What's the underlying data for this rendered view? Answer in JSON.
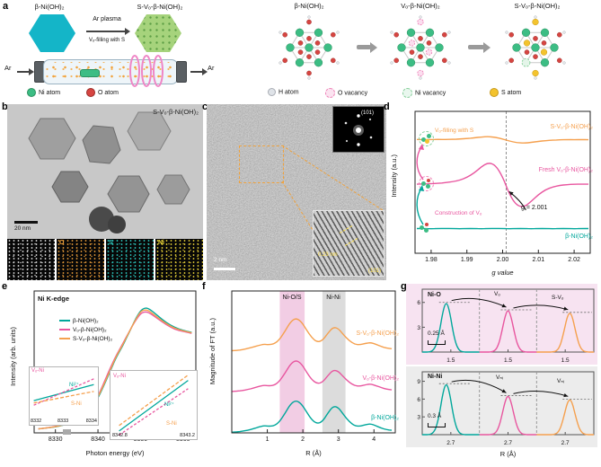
{
  "colors": {
    "teal": "#00a79b",
    "pink": "#e8569f",
    "orange": "#f5a04e",
    "green": "#3cbd84",
    "red": "#d64541",
    "yellow": "#f3c32e"
  },
  "panel_a": {
    "label": "a",
    "precursor": "β-Ni(OH)₂",
    "product": "S-Vₒ-β-Ni(OH)₂",
    "arrow_top": "Ar plasma",
    "arrow_bottom": "Vₒ-filling with S",
    "gas_in": "Ar",
    "gas_out": "Ar",
    "legend_left": [
      {
        "label": "Ni atom"
      },
      {
        "label": "O atom"
      }
    ],
    "structures": [
      {
        "title": "β-Ni(OH)₂"
      },
      {
        "title": "Vₒ-β-Ni(OH)₂"
      },
      {
        "title": "S-Vₒ-β-Ni(OH)₂"
      }
    ],
    "legend_right": [
      {
        "label": "H atom"
      },
      {
        "label": "O vacancy"
      },
      {
        "label": "Ni vacancy"
      },
      {
        "label": "S atom"
      }
    ]
  },
  "panel_b": {
    "label": "b",
    "sample": "S-Vₒ-β-Ni(OH)₂",
    "scalebar": "20 nm",
    "eds": [
      "O",
      "S",
      "Ni"
    ]
  },
  "panel_c": {
    "label": "c",
    "scalebar": "2 nm",
    "fft_spot": "(101)",
    "dspacing": "0.23 nm",
    "plane": "(101)"
  },
  "panel_d": {
    "label": "d",
    "annotation": "g = 2.001",
    "process_top": "Vₒ-filling with S",
    "process_bottom": "Construction of Vₒ"
  },
  "panel_e": {
    "label": "e",
    "title": "Ni K-edge",
    "legend": [
      {
        "name": "β-Ni(OH)₂",
        "color": "#00a79b"
      },
      {
        "name": "Vₒ-β-Ni(OH)₂",
        "color": "#e8569f"
      },
      {
        "name": "S-Vₒ-β-Ni(OH)₂",
        "color": "#f5a04e"
      }
    ],
    "inset1": {
      "ticks": [
        "8332",
        "8333",
        "8334"
      ],
      "labels": [
        {
          "t": "Vₒ-Ni",
          "color": "#e8569f"
        },
        {
          "t": "Ni²⁺",
          "color": "#00a79b"
        },
        {
          "t": "S-Ni",
          "color": "#f5a04e"
        }
      ],
      "lines": [
        {
          "c": "#00a79b",
          "pts": [
            [
              0.06,
              0.58
            ],
            [
              0.94,
              0.3
            ]
          ]
        },
        {
          "c": "#e8569f",
          "dash": "3,2",
          "pts": [
            [
              0.06,
              0.66
            ],
            [
              0.94,
              0.2
            ]
          ]
        },
        {
          "c": "#f5a04e",
          "dash": "4,2",
          "pts": [
            [
              0.06,
              0.62
            ],
            [
              0.94,
              0.42
            ]
          ]
        }
      ]
    },
    "inset2": {
      "ticks": [
        "8342.8",
        "8343.2"
      ],
      "labels": [
        {
          "t": "Vₒ-Ni",
          "color": "#e8569f"
        },
        {
          "t": "Ni²⁺",
          "color": "#00a79b"
        },
        {
          "t": "S-Ni",
          "color": "#f5a04e"
        }
      ],
      "lines": [
        {
          "c": "#00a79b",
          "pts": [
            [
              0.1,
              0.88
            ],
            [
              0.9,
              0.14
            ]
          ]
        },
        {
          "c": "#e8569f",
          "dash": "3,2",
          "pts": [
            [
              0.1,
              0.94
            ],
            [
              0.9,
              0.26
            ]
          ]
        },
        {
          "c": "#f5a04e",
          "dash": "4,2",
          "pts": [
            [
              0.1,
              0.8
            ],
            [
              0.9,
              0.06
            ]
          ]
        }
      ]
    }
  },
  "panel_f": {
    "label": "f",
    "band1": "Ni-O/S",
    "band2": "Ni-Ni"
  },
  "panel_g": {
    "label": "g",
    "xlabel": "R (Å)",
    "top": {
      "region": "Ni-O",
      "delta": "0.25 Å",
      "a1": "Vₒ",
      "a2": "S-Vₒ"
    },
    "bottom": {
      "region": "Ni-Ni",
      "delta": "0.3 Å",
      "a1": "Vₙᵢ",
      "a2": "Vₙᵢ"
    }
  },
  "chart_data": [
    {
      "id": "epr",
      "type": "line",
      "xlabel": "g value",
      "ylabel": "Intensity (a.u.)",
      "xlim": [
        1.9755,
        2.0245
      ],
      "ylim": [
        -5.6,
        5.9
      ],
      "pad": [
        8,
        8,
        30,
        30
      ],
      "xticks": [
        {
          "v": 1.98,
          "l": "1.98"
        },
        {
          "v": 1.99,
          "l": "1.99"
        },
        {
          "v": 2.0,
          "l": "2.00"
        },
        {
          "v": 2.01,
          "l": "2.01"
        },
        {
          "v": 2.02,
          "l": "2.02"
        }
      ],
      "vlines": [
        2.001
      ],
      "x": [
        1.976,
        1.978,
        1.98,
        1.982,
        1.984,
        1.986,
        1.988,
        1.99,
        1.992,
        1.994,
        1.996,
        1.998,
        2.0,
        2.002,
        2.004,
        2.006,
        2.008,
        2.01,
        2.012,
        2.014,
        2.016,
        2.018,
        2.02,
        2.022,
        2.024
      ],
      "series": [
        {
          "name": "S-Vₒ-β-Ni(OH)₂",
          "color": "#f5a04e",
          "offset": 3.6,
          "y": [
            0.02,
            0.01,
            0.02,
            0.03,
            0.02,
            0.04,
            0.06,
            0.1,
            0.15,
            0.22,
            0.26,
            0.2,
            0.06,
            -0.12,
            -0.24,
            -0.28,
            -0.22,
            -0.14,
            -0.07,
            -0.03,
            -0.01,
            0.01,
            0,
            0.01,
            0
          ]
        },
        {
          "name": "Fresh Vₒ-β-Ni(OH)₂",
          "color": "#e8569f",
          "offset": 0,
          "y": [
            0,
            0.02,
            0.04,
            0.07,
            0.12,
            0.2,
            0.32,
            0.55,
            0.9,
            1.4,
            1.75,
            1.55,
            0.6,
            -0.9,
            -1.75,
            -1.85,
            -1.4,
            -0.85,
            -0.45,
            -0.22,
            -0.1,
            -0.04,
            0,
            0,
            0
          ]
        },
        {
          "name": "β-Ni(OH)₂",
          "color": "#00a79b",
          "offset": -3.6,
          "y": [
            0,
            0.01,
            -0.01,
            0.01,
            0,
            0.01,
            -0.01,
            0,
            0.01,
            -0.01,
            0.01,
            0,
            0.01,
            -0.01,
            0,
            0.01,
            -0.01,
            0.01,
            0,
            -0.01,
            0.01,
            0,
            -0.01,
            0.01,
            0
          ]
        }
      ],
      "arrows": [
        {
          "x0": 2.0065,
          "y0": -2.1,
          "x1": 2.0018,
          "y1": -0.6,
          "bend": 4
        }
      ],
      "annotation": "g = 2.001"
    },
    {
      "id": "xanes",
      "type": "line",
      "xlabel": "Photon energy (eV)",
      "ylabel": "Intensity (arb. units)",
      "xlim": [
        8325,
        8363
      ],
      "ylim": [
        -0.02,
        1.42
      ],
      "pad": [
        8,
        8,
        30,
        30
      ],
      "xticks": [
        {
          "v": 8330,
          "l": "8330"
        },
        {
          "v": 8340,
          "l": "8340"
        },
        {
          "v": 8350,
          "l": "8350"
        },
        {
          "v": 8360,
          "l": "8360"
        }
      ],
      "x": [
        8326,
        8328,
        8330,
        8332,
        8333,
        8334,
        8336,
        8338,
        8340,
        8342,
        8343,
        8344,
        8345,
        8346,
        8347,
        8348,
        8349,
        8350,
        8351,
        8352,
        8354,
        8356,
        8358,
        8360,
        8362
      ],
      "series": [
        {
          "name": "β-Ni(OH)₂",
          "color": "#00a79b",
          "offset": 0,
          "y": [
            0.02,
            0.03,
            0.04,
            0.06,
            0.07,
            0.09,
            0.13,
            0.2,
            0.33,
            0.52,
            0.62,
            0.72,
            0.8,
            0.88,
            0.97,
            1.06,
            1.15,
            1.22,
            1.25,
            1.24,
            1.17,
            1.1,
            1.05,
            1.02,
            1.0
          ]
        },
        {
          "name": "Vₒ-β-Ni(OH)₂",
          "color": "#e8569f",
          "offset": 0,
          "y": [
            0.02,
            0.03,
            0.045,
            0.065,
            0.075,
            0.095,
            0.135,
            0.21,
            0.35,
            0.55,
            0.65,
            0.74,
            0.82,
            0.9,
            0.98,
            1.06,
            1.13,
            1.19,
            1.21,
            1.2,
            1.14,
            1.08,
            1.03,
            1.01,
            0.99
          ]
        },
        {
          "name": "S-Vₒ-β-Ni(OH)₂",
          "color": "#f5a04e",
          "offset": 0,
          "y": [
            0.02,
            0.03,
            0.042,
            0.062,
            0.072,
            0.092,
            0.13,
            0.205,
            0.34,
            0.53,
            0.63,
            0.73,
            0.81,
            0.89,
            0.975,
            1.06,
            1.14,
            1.21,
            1.23,
            1.22,
            1.15,
            1.09,
            1.04,
            1.015,
            0.995
          ]
        }
      ]
    },
    {
      "id": "exafs",
      "type": "line",
      "xlabel": "R (Å)",
      "ylabel": "Magnitude of FT (a.u.)",
      "xlim": [
        0,
        4.6
      ],
      "ylim": [
        0,
        4.35
      ],
      "pad": [
        8,
        8,
        30,
        28
      ],
      "xticks": [
        {
          "v": 1,
          "l": "1"
        },
        {
          "v": 2,
          "l": "2"
        },
        {
          "v": 3,
          "l": "3"
        },
        {
          "v": 4,
          "l": "4"
        }
      ],
      "bands": [
        {
          "x0": 1.35,
          "x1": 2.05,
          "c": "#f2cde4"
        },
        {
          "x0": 2.55,
          "x1": 3.2,
          "c": "#dcdcdc"
        }
      ],
      "x": [
        0,
        0.15,
        0.3,
        0.45,
        0.6,
        0.75,
        0.9,
        1.05,
        1.2,
        1.35,
        1.5,
        1.65,
        1.8,
        1.95,
        2.1,
        2.25,
        2.4,
        2.55,
        2.7,
        2.85,
        3.0,
        3.15,
        3.3,
        3.45,
        3.6,
        3.75,
        3.9,
        4.05,
        4.2,
        4.35,
        4.5
      ],
      "series": [
        {
          "name": "S-Vₒ-β-Ni(OH)₂",
          "color": "#f5a04e",
          "offset": 2.5,
          "y": [
            0.02,
            0.03,
            0.05,
            0.09,
            0.13,
            0.18,
            0.22,
            0.2,
            0.23,
            0.37,
            0.62,
            0.9,
            1.02,
            0.92,
            0.66,
            0.42,
            0.28,
            0.33,
            0.55,
            0.74,
            0.7,
            0.5,
            0.33,
            0.22,
            0.2,
            0.24,
            0.27,
            0.22,
            0.15,
            0.1,
            0.08
          ]
        },
        {
          "name": "Vₒ-β-Ni(OH)₂",
          "color": "#e8569f",
          "offset": 1.25,
          "y": [
            0.02,
            0.03,
            0.05,
            0.08,
            0.12,
            0.17,
            0.21,
            0.19,
            0.21,
            0.34,
            0.58,
            0.86,
            0.98,
            0.88,
            0.62,
            0.38,
            0.26,
            0.3,
            0.5,
            0.68,
            0.64,
            0.46,
            0.3,
            0.2,
            0.18,
            0.22,
            0.25,
            0.2,
            0.14,
            0.09,
            0.07
          ]
        },
        {
          "name": "β-Ni(OH)₂",
          "color": "#00a79b",
          "offset": 0,
          "y": [
            0.02,
            0.03,
            0.05,
            0.08,
            0.12,
            0.18,
            0.22,
            0.2,
            0.22,
            0.35,
            0.6,
            0.88,
            1.0,
            0.9,
            0.65,
            0.4,
            0.28,
            0.35,
            0.6,
            0.82,
            0.78,
            0.55,
            0.35,
            0.22,
            0.2,
            0.25,
            0.28,
            0.22,
            0.15,
            0.1,
            0.08
          ]
        }
      ]
    },
    {
      "id": "g-top",
      "type": "peaks",
      "ylim": [
        0,
        7.6
      ],
      "tick": "1.5",
      "yticks": [
        {
          "v": 3,
          "l": "3"
        },
        {
          "v": 6,
          "l": "6"
        }
      ],
      "subs": [
        {
          "color": "#00a79b",
          "center": 0.42,
          "height": 6.0
        },
        {
          "color": "#e8569f",
          "center": 0.5,
          "height": 5.1
        },
        {
          "color": "#f5a04e",
          "center": 0.58,
          "height": 4.8
        }
      ]
    },
    {
      "id": "g-bottom",
      "type": "peaks",
      "ylim": [
        0,
        10.6
      ],
      "tick": "2.7",
      "yticks": [
        {
          "v": 3,
          "l": "3"
        },
        {
          "v": 6,
          "l": "6"
        },
        {
          "v": 9,
          "l": "9"
        }
      ],
      "subs": [
        {
          "color": "#00a79b",
          "center": 0.42,
          "height": 8.6
        },
        {
          "color": "#e8569f",
          "center": 0.5,
          "height": 6.6
        },
        {
          "color": "#f5a04e",
          "center": 0.58,
          "height": 6.0
        }
      ]
    }
  ]
}
